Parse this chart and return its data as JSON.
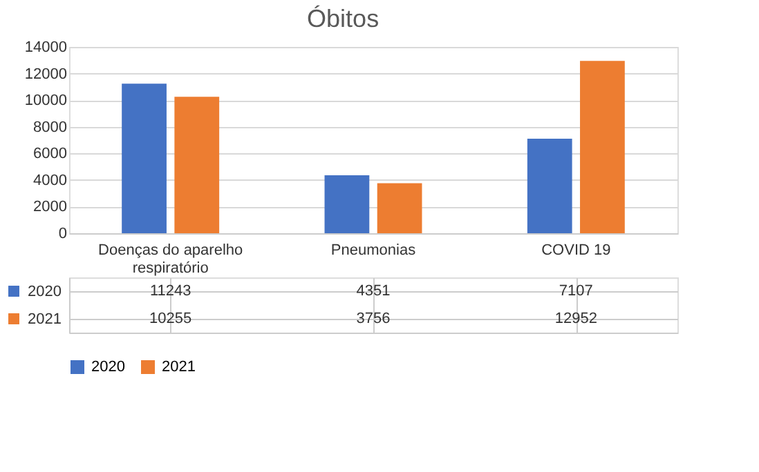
{
  "chart_data": {
    "type": "bar",
    "title": "Óbitos",
    "categories": [
      "Doenças do aparelho respiratório",
      "Pneumonias",
      "COVID 19"
    ],
    "series": [
      {
        "name": "2020",
        "color": "#4472c4",
        "values": [
          11243,
          4351,
          7107
        ]
      },
      {
        "name": "2021",
        "color": "#ed7d31",
        "values": [
          10255,
          3756,
          12952
        ]
      }
    ],
    "ylim": [
      0,
      14000
    ],
    "yticks": [
      0,
      2000,
      4000,
      6000,
      8000,
      10000,
      12000,
      14000
    ],
    "grid": "y",
    "legend": "bottom",
    "data_labels": true
  }
}
